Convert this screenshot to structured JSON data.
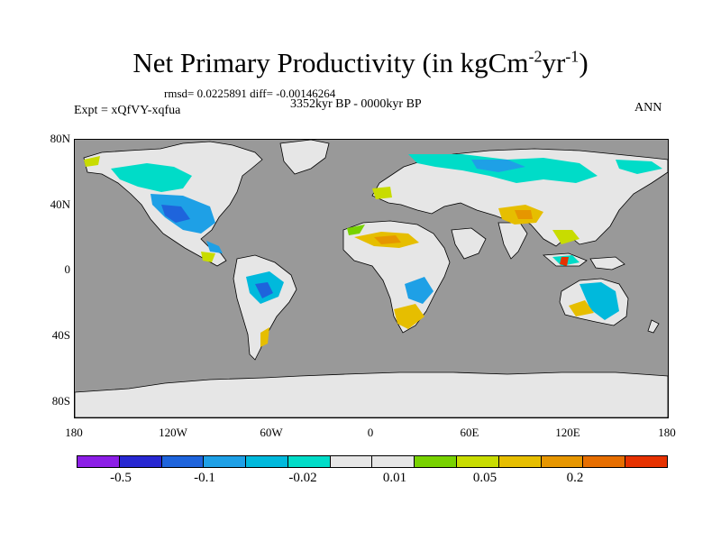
{
  "title": {
    "main": "Net Primary Productivity (in kgCm",
    "exp1": "-2",
    "mid": "yr",
    "exp2": "-1",
    "end": ")"
  },
  "stats": "rmsd= 0.0225891 diff= -0.00146264",
  "period": "3352kyr BP - 0000kyr BP",
  "experiment": "Expt = xQfVY-xqfua",
  "season": "ANN",
  "lat_ticks": [
    "80N",
    "40N",
    "0",
    "40S",
    "80S"
  ],
  "lon_ticks": [
    "180",
    "120W",
    "60W",
    "0",
    "60E",
    "120E",
    "180"
  ],
  "colorbar": {
    "colors": [
      "#8c1ee6",
      "#2828d2",
      "#1e64dc",
      "#1ea0e6",
      "#00b9dc",
      "#00dcc8",
      "#e6e6e6",
      "#e6e6e6",
      "#78d200",
      "#c8dc00",
      "#e6be00",
      "#e69600",
      "#e66e00",
      "#e63200"
    ],
    "labels": [
      "-0.5",
      "-0.1",
      "-0.02",
      "0.01",
      "0.05",
      "0.2"
    ]
  },
  "colors": {
    "ocean": "#999999",
    "zero": "#e6e6e6"
  }
}
